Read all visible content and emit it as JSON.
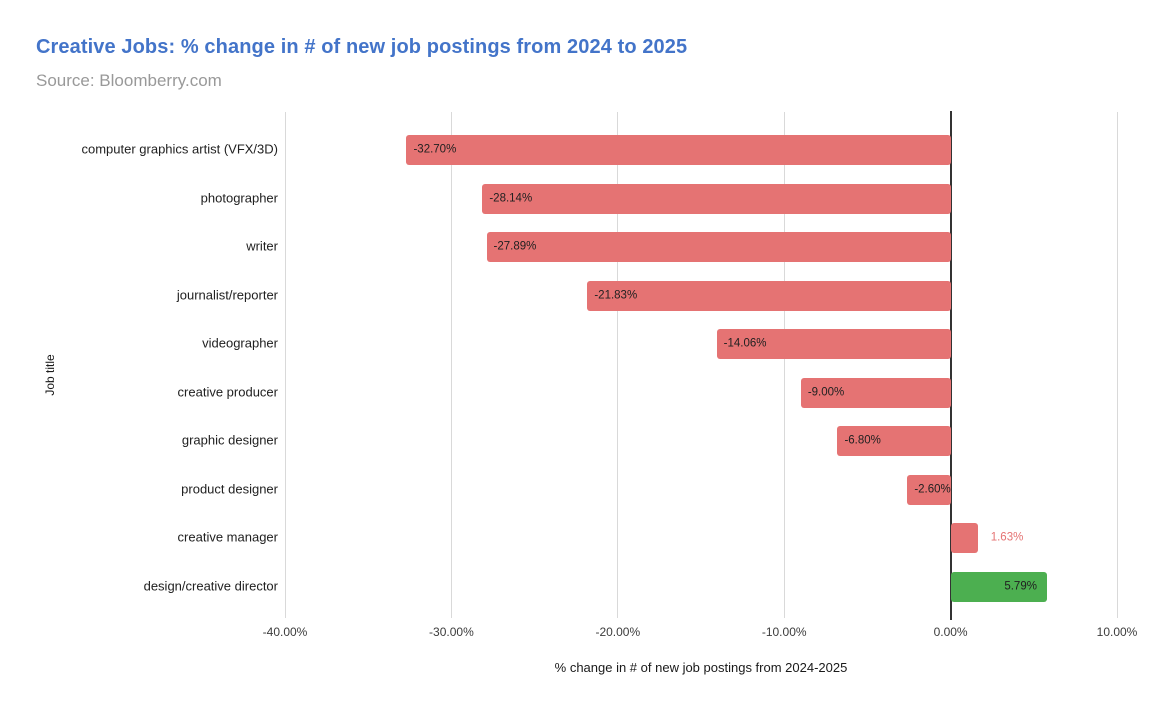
{
  "header": {
    "title": "Creative Jobs: % change in # of new job postings from 2024 to 2025",
    "source": "Source: Bloomberry.com"
  },
  "theme": {
    "title_color": "#4374c9",
    "source_color": "#999999",
    "gridline_color": "#d9d9d9",
    "zero_line_color": "#333333",
    "negative_bar_color": "#e57373",
    "positive_bar_color": "#4caf50",
    "label_dark_color": "#212121"
  },
  "chart_data": {
    "type": "bar",
    "orientation": "horizontal",
    "title": "Creative Jobs: % change in # of new job postings from 2024 to 2025",
    "subtitle": "Source: Bloomberry.com",
    "xlabel": "% change in # of new job postings from 2024-2025",
    "ylabel": "Job title",
    "xlim": [
      -40,
      10
    ],
    "grid": true,
    "legend": false,
    "x_ticks": [
      {
        "value": -40,
        "label": "-40.00%"
      },
      {
        "value": -30,
        "label": "-30.00%"
      },
      {
        "value": -20,
        "label": "-20.00%"
      },
      {
        "value": -10,
        "label": "-10.00%"
      },
      {
        "value": 0,
        "label": "0.00%"
      },
      {
        "value": 10,
        "label": "10.00%"
      }
    ],
    "bars": [
      {
        "category": "computer graphics artist (VFX/3D)",
        "value": -32.7,
        "label": "-32.70%",
        "color": "#e57373",
        "label_placement": "inside-start",
        "label_color": "#212121"
      },
      {
        "category": "photographer",
        "value": -28.14,
        "label": "-28.14%",
        "color": "#e57373",
        "label_placement": "inside-start",
        "label_color": "#212121"
      },
      {
        "category": "writer",
        "value": -27.89,
        "label": "-27.89%",
        "color": "#e57373",
        "label_placement": "inside-start",
        "label_color": "#212121"
      },
      {
        "category": "journalist/reporter",
        "value": -21.83,
        "label": "-21.83%",
        "color": "#e57373",
        "label_placement": "inside-start",
        "label_color": "#212121"
      },
      {
        "category": "videographer",
        "value": -14.06,
        "label": "-14.06%",
        "color": "#e57373",
        "label_placement": "inside-start",
        "label_color": "#212121"
      },
      {
        "category": "creative producer",
        "value": -9.0,
        "label": "-9.00%",
        "color": "#e57373",
        "label_placement": "inside-start",
        "label_color": "#212121"
      },
      {
        "category": "graphic designer",
        "value": -6.8,
        "label": "-6.80%",
        "color": "#e57373",
        "label_placement": "inside-start",
        "label_color": "#212121"
      },
      {
        "category": "product designer",
        "value": -2.6,
        "label": "-2.60%",
        "color": "#e57373",
        "label_placement": "inside-start",
        "label_color": "#212121"
      },
      {
        "category": "creative manager",
        "value": 1.63,
        "label": "1.63%",
        "color": "#e57373",
        "label_placement": "outside-end",
        "label_color": "#e57373"
      },
      {
        "category": "design/creative director",
        "value": 5.79,
        "label": "5.79%",
        "color": "#4caf50",
        "label_placement": "inside-end",
        "label_color": "#212121"
      }
    ]
  }
}
